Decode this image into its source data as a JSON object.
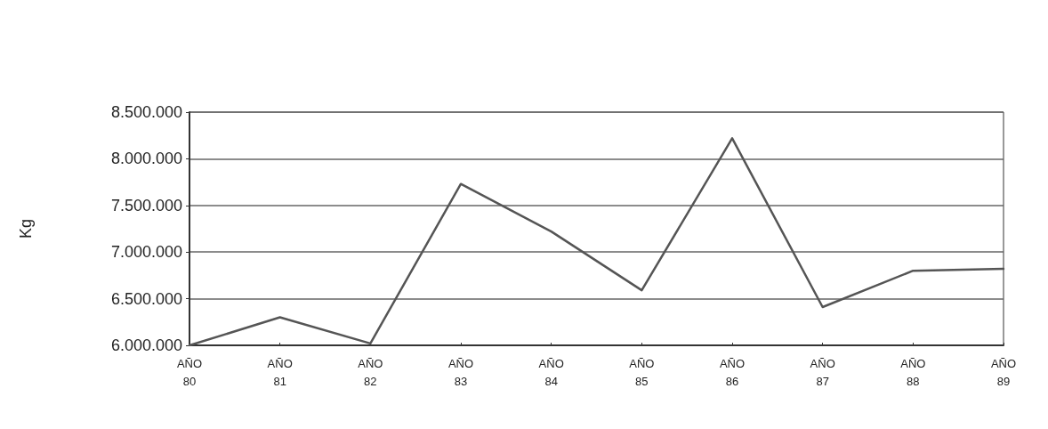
{
  "chart_data": {
    "type": "line",
    "ylabel": "Kg",
    "categories": [
      "AÑO\n80",
      "AÑO\n81",
      "AÑO\n82",
      "AÑO\n83",
      "AÑO\n84",
      "AÑO\n85",
      "AÑO\n86",
      "AÑO\n87",
      "AÑO\n88",
      "AÑO\n89"
    ],
    "series": [
      {
        "color": "#555555",
        "values": [
          6000000,
          6300000,
          6020000,
          7730000,
          7220000,
          6590000,
          8220000,
          6410000,
          6800000,
          6820000
        ]
      }
    ],
    "ylim": [
      6000000,
      8500000
    ],
    "yticks": [
      {
        "value": 6000000,
        "label": "6.000.000"
      },
      {
        "value": 6500000,
        "label": "6.500.000"
      },
      {
        "value": 7000000,
        "label": "7.000.000"
      },
      {
        "value": 7500000,
        "label": "7.500.000"
      },
      {
        "value": 8000000,
        "label": "8.000.000"
      },
      {
        "value": 8500000,
        "label": "8.500.000"
      }
    ],
    "grid": "y",
    "marker": "none",
    "line_style": "solid"
  }
}
